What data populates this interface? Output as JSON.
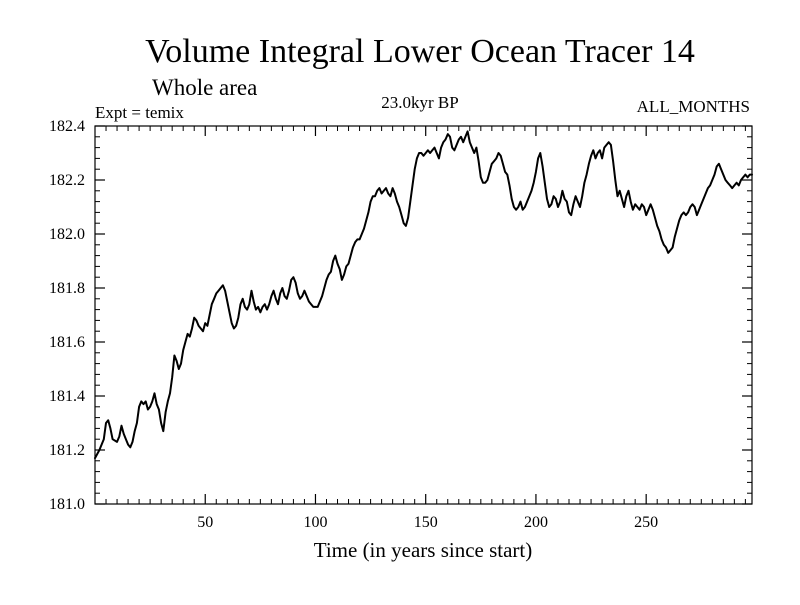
{
  "chart_data": {
    "type": "line",
    "title": "Volume Integral Lower Ocean Tracer 14",
    "subtitle": "Whole area",
    "experiment_label": "Expt = temix",
    "period_label": "23.0kyr BP",
    "months_label": "ALL_MONTHS",
    "xlabel": "Time (in years since start)",
    "ylabel": "",
    "xlim": [
      0,
      298
    ],
    "ylim": [
      181.0,
      182.4
    ],
    "x_ticks": [
      50,
      100,
      150,
      200,
      250
    ],
    "y_ticks": [
      "181.0",
      "181.2",
      "181.4",
      "181.6",
      "181.8",
      "182.0",
      "182.2",
      "182.4"
    ],
    "grid": false,
    "series": [
      {
        "name": "Volume Integral Lower Ocean Tracer 14",
        "color": "#000000",
        "points": [
          [
            0,
            181.17
          ],
          [
            2,
            181.2
          ],
          [
            4,
            181.24
          ],
          [
            5,
            181.3
          ],
          [
            6,
            181.31
          ],
          [
            7,
            181.28
          ],
          [
            8,
            181.24
          ],
          [
            10,
            181.23
          ],
          [
            11,
            181.25
          ],
          [
            12,
            181.29
          ],
          [
            13,
            181.26
          ],
          [
            14,
            181.24
          ],
          [
            15,
            181.22
          ],
          [
            16,
            181.21
          ],
          [
            17,
            181.23
          ],
          [
            18,
            181.27
          ],
          [
            19,
            181.3
          ],
          [
            20,
            181.36
          ],
          [
            21,
            181.38
          ],
          [
            22,
            181.37
          ],
          [
            23,
            181.38
          ],
          [
            24,
            181.35
          ],
          [
            25,
            181.36
          ],
          [
            26,
            181.38
          ],
          [
            27,
            181.41
          ],
          [
            28,
            181.37
          ],
          [
            29,
            181.35
          ],
          [
            30,
            181.3
          ],
          [
            31,
            181.27
          ],
          [
            32,
            181.34
          ],
          [
            33,
            181.38
          ],
          [
            34,
            181.41
          ],
          [
            35,
            181.47
          ],
          [
            36,
            181.55
          ],
          [
            37,
            181.53
          ],
          [
            38,
            181.5
          ],
          [
            39,
            181.52
          ],
          [
            40,
            181.57
          ],
          [
            41,
            181.6
          ],
          [
            42,
            181.63
          ],
          [
            43,
            181.62
          ],
          [
            44,
            181.65
          ],
          [
            45,
            181.69
          ],
          [
            46,
            181.68
          ],
          [
            47,
            181.66
          ],
          [
            48,
            181.65
          ],
          [
            49,
            181.64
          ],
          [
            50,
            181.67
          ],
          [
            51,
            181.66
          ],
          [
            52,
            181.7
          ],
          [
            53,
            181.74
          ],
          [
            54,
            181.76
          ],
          [
            55,
            181.78
          ],
          [
            56,
            181.79
          ],
          [
            57,
            181.8
          ],
          [
            58,
            181.81
          ],
          [
            59,
            181.79
          ],
          [
            60,
            181.75
          ],
          [
            61,
            181.71
          ],
          [
            62,
            181.67
          ],
          [
            63,
            181.65
          ],
          [
            64,
            181.66
          ],
          [
            65,
            181.69
          ],
          [
            66,
            181.74
          ],
          [
            67,
            181.76
          ],
          [
            68,
            181.73
          ],
          [
            69,
            181.72
          ],
          [
            70,
            181.74
          ],
          [
            71,
            181.79
          ],
          [
            72,
            181.75
          ],
          [
            73,
            181.72
          ],
          [
            74,
            181.73
          ],
          [
            75,
            181.71
          ],
          [
            76,
            181.73
          ],
          [
            77,
            181.74
          ],
          [
            78,
            181.72
          ],
          [
            79,
            181.74
          ],
          [
            80,
            181.77
          ],
          [
            81,
            181.79
          ],
          [
            82,
            181.76
          ],
          [
            83,
            181.74
          ],
          [
            84,
            181.78
          ],
          [
            85,
            181.8
          ],
          [
            86,
            181.77
          ],
          [
            87,
            181.76
          ],
          [
            88,
            181.79
          ],
          [
            89,
            181.83
          ],
          [
            90,
            181.84
          ],
          [
            91,
            181.82
          ],
          [
            92,
            181.78
          ],
          [
            93,
            181.76
          ],
          [
            94,
            181.77
          ],
          [
            95,
            181.79
          ],
          [
            96,
            181.77
          ],
          [
            97,
            181.75
          ],
          [
            98,
            181.74
          ],
          [
            99,
            181.73
          ],
          [
            100,
            181.73
          ],
          [
            101,
            181.73
          ],
          [
            102,
            181.75
          ],
          [
            103,
            181.77
          ],
          [
            104,
            181.8
          ],
          [
            105,
            181.83
          ],
          [
            106,
            181.85
          ],
          [
            107,
            181.86
          ],
          [
            108,
            181.9
          ],
          [
            109,
            181.92
          ],
          [
            110,
            181.89
          ],
          [
            111,
            181.87
          ],
          [
            112,
            181.83
          ],
          [
            113,
            181.85
          ],
          [
            114,
            181.88
          ],
          [
            115,
            181.89
          ],
          [
            116,
            181.92
          ],
          [
            117,
            181.95
          ],
          [
            118,
            181.97
          ],
          [
            119,
            181.98
          ],
          [
            120,
            181.98
          ],
          [
            121,
            182.0
          ],
          [
            122,
            182.02
          ],
          [
            123,
            182.05
          ],
          [
            124,
            182.08
          ],
          [
            125,
            182.12
          ],
          [
            126,
            182.14
          ],
          [
            127,
            182.14
          ],
          [
            128,
            182.16
          ],
          [
            129,
            182.17
          ],
          [
            130,
            182.15
          ],
          [
            131,
            182.16
          ],
          [
            132,
            182.17
          ],
          [
            133,
            182.15
          ],
          [
            134,
            182.14
          ],
          [
            135,
            182.17
          ],
          [
            136,
            182.15
          ],
          [
            137,
            182.12
          ],
          [
            138,
            182.1
          ],
          [
            139,
            182.07
          ],
          [
            140,
            182.04
          ],
          [
            141,
            182.03
          ],
          [
            142,
            182.06
          ],
          [
            143,
            182.12
          ],
          [
            144,
            182.18
          ],
          [
            145,
            182.24
          ],
          [
            146,
            182.28
          ],
          [
            147,
            182.3
          ],
          [
            148,
            182.3
          ],
          [
            149,
            182.29
          ],
          [
            150,
            182.3
          ],
          [
            151,
            182.31
          ],
          [
            152,
            182.3
          ],
          [
            153,
            182.31
          ],
          [
            154,
            182.32
          ],
          [
            155,
            182.3
          ],
          [
            156,
            182.28
          ],
          [
            157,
            182.32
          ],
          [
            158,
            182.34
          ],
          [
            159,
            182.35
          ],
          [
            160,
            182.37
          ],
          [
            161,
            182.36
          ],
          [
            162,
            182.32
          ],
          [
            163,
            182.31
          ],
          [
            164,
            182.33
          ],
          [
            165,
            182.35
          ],
          [
            166,
            182.36
          ],
          [
            167,
            182.34
          ],
          [
            168,
            182.36
          ],
          [
            169,
            182.38
          ],
          [
            170,
            182.34
          ],
          [
            171,
            182.32
          ],
          [
            172,
            182.3
          ],
          [
            173,
            182.32
          ],
          [
            174,
            182.27
          ],
          [
            175,
            182.21
          ],
          [
            176,
            182.19
          ],
          [
            177,
            182.19
          ],
          [
            178,
            182.2
          ],
          [
            179,
            182.23
          ],
          [
            180,
            182.26
          ],
          [
            181,
            182.27
          ],
          [
            182,
            182.28
          ],
          [
            183,
            182.3
          ],
          [
            184,
            182.29
          ],
          [
            185,
            182.26
          ],
          [
            186,
            182.23
          ],
          [
            187,
            182.22
          ],
          [
            188,
            182.18
          ],
          [
            189,
            182.13
          ],
          [
            190,
            182.1
          ],
          [
            191,
            182.09
          ],
          [
            192,
            182.1
          ],
          [
            193,
            182.12
          ],
          [
            194,
            182.09
          ],
          [
            195,
            182.1
          ],
          [
            196,
            182.12
          ],
          [
            197,
            182.14
          ],
          [
            198,
            182.16
          ],
          [
            199,
            182.19
          ],
          [
            200,
            182.23
          ],
          [
            201,
            182.28
          ],
          [
            202,
            182.3
          ],
          [
            203,
            182.25
          ],
          [
            204,
            182.19
          ],
          [
            205,
            182.13
          ],
          [
            206,
            182.1
          ],
          [
            207,
            182.11
          ],
          [
            208,
            182.14
          ],
          [
            209,
            182.13
          ],
          [
            210,
            182.1
          ],
          [
            211,
            182.12
          ],
          [
            212,
            182.16
          ],
          [
            213,
            182.13
          ],
          [
            214,
            182.12
          ],
          [
            215,
            182.08
          ],
          [
            216,
            182.07
          ],
          [
            217,
            182.11
          ],
          [
            218,
            182.14
          ],
          [
            219,
            182.12
          ],
          [
            220,
            182.1
          ],
          [
            221,
            182.14
          ],
          [
            222,
            182.19
          ],
          [
            223,
            182.22
          ],
          [
            224,
            182.26
          ],
          [
            225,
            182.29
          ],
          [
            226,
            182.31
          ],
          [
            227,
            182.28
          ],
          [
            228,
            182.3
          ],
          [
            229,
            182.31
          ],
          [
            230,
            182.28
          ],
          [
            231,
            182.32
          ],
          [
            232,
            182.33
          ],
          [
            233,
            182.34
          ],
          [
            234,
            182.33
          ],
          [
            235,
            182.27
          ],
          [
            236,
            182.2
          ],
          [
            237,
            182.14
          ],
          [
            238,
            182.16
          ],
          [
            239,
            182.13
          ],
          [
            240,
            182.1
          ],
          [
            241,
            182.14
          ],
          [
            242,
            182.16
          ],
          [
            243,
            182.12
          ],
          [
            244,
            182.09
          ],
          [
            245,
            182.11
          ],
          [
            246,
            182.1
          ],
          [
            247,
            182.09
          ],
          [
            248,
            182.11
          ],
          [
            249,
            182.1
          ],
          [
            250,
            182.07
          ],
          [
            251,
            182.09
          ],
          [
            252,
            182.11
          ],
          [
            253,
            182.09
          ],
          [
            254,
            182.06
          ],
          [
            255,
            182.03
          ],
          [
            256,
            182.01
          ],
          [
            257,
            181.98
          ],
          [
            258,
            181.96
          ],
          [
            259,
            181.95
          ],
          [
            260,
            181.93
          ],
          [
            261,
            181.94
          ],
          [
            262,
            181.95
          ],
          [
            263,
            181.99
          ],
          [
            264,
            182.02
          ],
          [
            265,
            182.05
          ],
          [
            266,
            182.07
          ],
          [
            267,
            182.08
          ],
          [
            268,
            182.07
          ],
          [
            269,
            182.08
          ],
          [
            270,
            182.1
          ],
          [
            271,
            182.11
          ],
          [
            272,
            182.1
          ],
          [
            273,
            182.07
          ],
          [
            274,
            182.09
          ],
          [
            275,
            182.11
          ],
          [
            276,
            182.13
          ],
          [
            277,
            182.15
          ],
          [
            278,
            182.17
          ],
          [
            279,
            182.18
          ],
          [
            280,
            182.2
          ],
          [
            281,
            182.22
          ],
          [
            282,
            182.25
          ],
          [
            283,
            182.26
          ],
          [
            284,
            182.24
          ],
          [
            285,
            182.22
          ],
          [
            286,
            182.2
          ],
          [
            287,
            182.19
          ],
          [
            288,
            182.18
          ],
          [
            289,
            182.17
          ],
          [
            290,
            182.18
          ],
          [
            291,
            182.19
          ],
          [
            292,
            182.18
          ],
          [
            293,
            182.2
          ],
          [
            294,
            182.21
          ],
          [
            295,
            182.22
          ],
          [
            296,
            182.21
          ],
          [
            297,
            182.22
          ],
          [
            298,
            182.22
          ]
        ]
      }
    ]
  }
}
